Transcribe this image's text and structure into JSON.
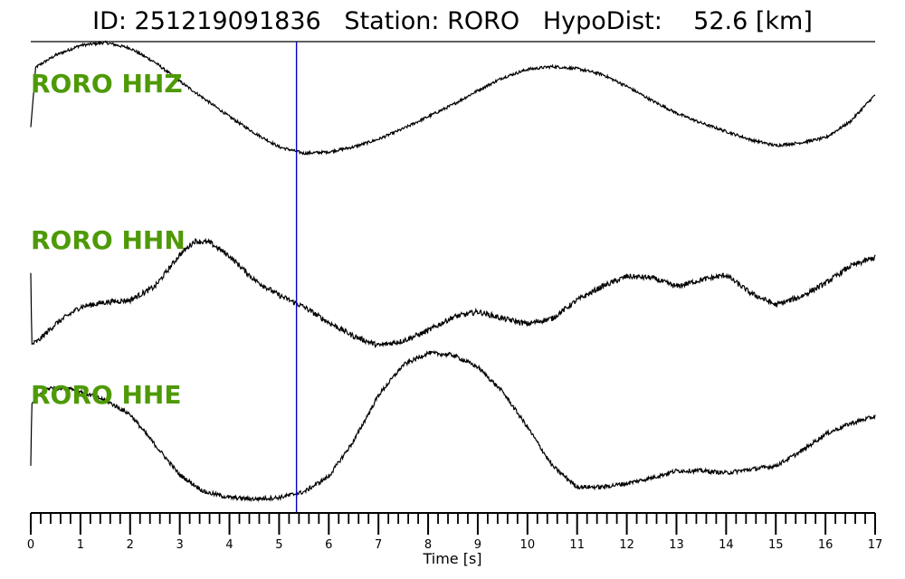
{
  "title": "ID: 251219091836   Station: RORO   HypoDist:    52.6 [km]",
  "colors": {
    "label": "#4e9a06",
    "marker": "#0000cc",
    "trace": "#000000"
  },
  "chart_data": {
    "type": "line",
    "xlabel": "Time [s]",
    "xlim": [
      0,
      17
    ],
    "major_ticks": [
      0,
      1,
      2,
      3,
      4,
      5,
      6,
      7,
      8,
      9,
      10,
      11,
      12,
      13,
      14,
      15,
      16,
      17
    ],
    "minor_tick_step": 0.2,
    "marker_time": 5.35,
    "series": [
      {
        "name": "RORO HHZ",
        "x": [
          0.0,
          0.1,
          0.5,
          1.0,
          1.5,
          2.0,
          2.5,
          3.0,
          3.5,
          4.0,
          4.5,
          5.0,
          5.5,
          6.0,
          6.5,
          7.0,
          7.5,
          8.0,
          8.5,
          9.0,
          9.5,
          10.0,
          10.5,
          11.0,
          11.5,
          12.0,
          12.5,
          13.0,
          13.5,
          14.0,
          14.5,
          15.0,
          15.5,
          16.0,
          16.5,
          17.0
        ],
        "y": [
          -0.2,
          0.65,
          0.82,
          0.96,
          1.0,
          0.92,
          0.72,
          0.45,
          0.2,
          -0.05,
          -0.28,
          -0.48,
          -0.57,
          -0.55,
          -0.48,
          -0.37,
          -0.22,
          -0.05,
          0.12,
          0.32,
          0.5,
          0.62,
          0.66,
          0.63,
          0.55,
          0.38,
          0.18,
          0.0,
          -0.14,
          -0.26,
          -0.38,
          -0.46,
          -0.42,
          -0.35,
          -0.12,
          0.26
        ],
        "noise": 0.02
      },
      {
        "name": "RORO HHN",
        "x": [
          0.0,
          0.02,
          0.15,
          0.5,
          1.0,
          1.5,
          2.0,
          2.5,
          3.0,
          3.3,
          3.6,
          4.0,
          4.5,
          5.0,
          5.5,
          6.0,
          6.5,
          7.0,
          7.5,
          8.0,
          8.5,
          9.0,
          9.5,
          10.0,
          10.5,
          11.0,
          11.5,
          12.0,
          12.5,
          13.0,
          13.5,
          14.0,
          14.5,
          15.0,
          15.5,
          16.0,
          16.5,
          17.0
        ],
        "y": [
          0.15,
          -0.9,
          -0.85,
          -0.6,
          -0.35,
          -0.28,
          -0.25,
          -0.05,
          0.42,
          0.62,
          0.6,
          0.4,
          0.05,
          -0.18,
          -0.35,
          -0.58,
          -0.78,
          -0.92,
          -0.85,
          -0.7,
          -0.5,
          -0.42,
          -0.52,
          -0.6,
          -0.52,
          -0.25,
          -0.05,
          0.1,
          0.08,
          -0.05,
          0.05,
          0.12,
          -0.15,
          -0.32,
          -0.2,
          0.0,
          0.25,
          0.38
        ],
        "noise": 0.04
      },
      {
        "name": "RORO HHE",
        "x": [
          0.0,
          0.02,
          0.3,
          0.8,
          1.5,
          2.0,
          2.5,
          3.0,
          3.5,
          4.0,
          4.5,
          5.0,
          5.5,
          6.0,
          6.5,
          7.0,
          7.5,
          8.0,
          8.5,
          9.0,
          9.5,
          10.0,
          10.5,
          11.0,
          11.5,
          12.0,
          12.5,
          13.0,
          13.5,
          14.0,
          14.5,
          15.0,
          15.5,
          16.0,
          16.5,
          17.0
        ],
        "y": [
          -0.55,
          0.33,
          0.55,
          0.55,
          0.38,
          0.18,
          -0.25,
          -0.68,
          -0.92,
          -1.0,
          -1.02,
          -1.0,
          -0.92,
          -0.7,
          -0.2,
          0.45,
          0.88,
          1.05,
          1.02,
          0.85,
          0.5,
          0.0,
          -0.55,
          -0.85,
          -0.85,
          -0.8,
          -0.72,
          -0.62,
          -0.62,
          -0.65,
          -0.6,
          -0.55,
          -0.35,
          -0.1,
          0.05,
          0.15
        ],
        "noise": 0.03
      }
    ]
  }
}
